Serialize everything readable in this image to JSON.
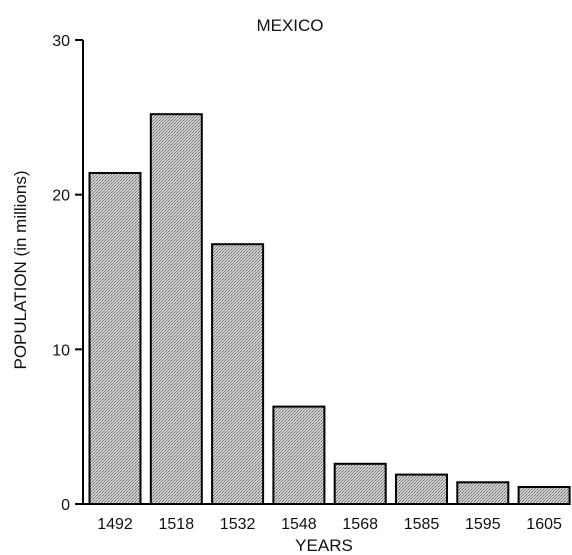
{
  "chart_data": {
    "type": "bar",
    "title": "MEXICO",
    "xlabel": "YEARS",
    "ylabel": "POPULATION (in millions)",
    "categories": [
      "1492",
      "1518",
      "1532",
      "1548",
      "1568",
      "1585",
      "1595",
      "1605"
    ],
    "values": [
      21.4,
      25.2,
      16.8,
      6.3,
      2.6,
      1.9,
      1.4,
      1.1
    ],
    "ylim": [
      0,
      30
    ],
    "yticks": [
      0,
      10,
      20,
      30
    ],
    "grid": false,
    "legend": "none",
    "bar_fill": "#c4c4c4",
    "bar_stroke": "#000000"
  }
}
